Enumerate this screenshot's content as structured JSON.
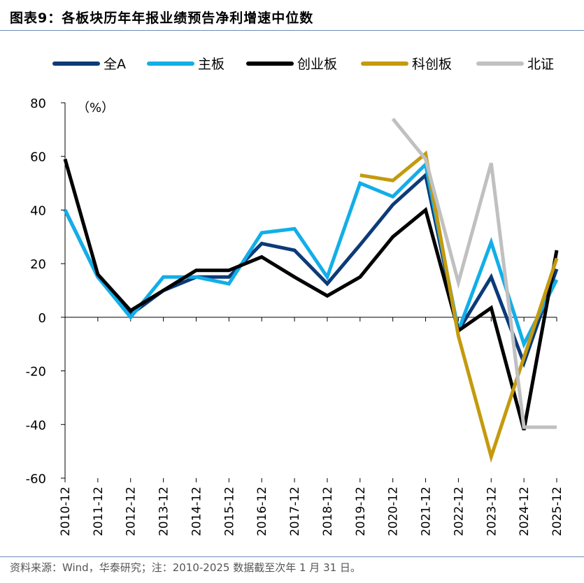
{
  "header": {
    "figure_label": "图表9：",
    "title": "各板块历年年报业绩预告净利增速中位数"
  },
  "footer": {
    "source": "资料来源：Wind，华泰研究；注：2010-2025 数据截至次年 1 月 31 日。"
  },
  "chart_data": {
    "type": "line",
    "unit_label": "（%）",
    "categories": [
      "2010-12",
      "2011-12",
      "2012-12",
      "2013-12",
      "2014-12",
      "2015-12",
      "2016-12",
      "2017-12",
      "2018-12",
      "2019-12",
      "2020-12",
      "2021-12",
      "2022-12",
      "2023-12",
      "2024-12",
      "2025-12"
    ],
    "ylim": [
      -60,
      80
    ],
    "yticks": [
      80,
      60,
      40,
      20,
      0,
      -20,
      -40,
      -60
    ],
    "legend_position": "top",
    "series": [
      {
        "name": "全A",
        "color": "#0d3a78",
        "values": [
          40,
          15,
          1,
          10,
          15,
          15,
          27.5,
          25,
          12.5,
          27,
          42,
          53,
          -5,
          15,
          -17,
          18
        ]
      },
      {
        "name": "主板",
        "color": "#12aee8",
        "values": [
          40,
          15,
          0,
          15,
          15,
          12.5,
          31.5,
          33,
          15,
          50,
          45,
          57,
          -5,
          28,
          -10,
          14
        ]
      },
      {
        "name": "创业板",
        "color": "#000000",
        "values": [
          59,
          16,
          2.5,
          10,
          17.5,
          17.5,
          22.5,
          15,
          8,
          15,
          30,
          40,
          -5,
          3.5,
          -42,
          25
        ]
      },
      {
        "name": "科创板",
        "color": "#c49a0e",
        "values": [
          null,
          null,
          null,
          null,
          null,
          null,
          null,
          null,
          null,
          53,
          51,
          61,
          -7,
          -52,
          -15,
          22
        ]
      },
      {
        "name": "北证",
        "color": "#c0c0c0",
        "values": [
          null,
          null,
          null,
          null,
          null,
          null,
          null,
          null,
          null,
          null,
          74,
          59,
          13,
          57.5,
          -41,
          -41
        ]
      }
    ]
  }
}
